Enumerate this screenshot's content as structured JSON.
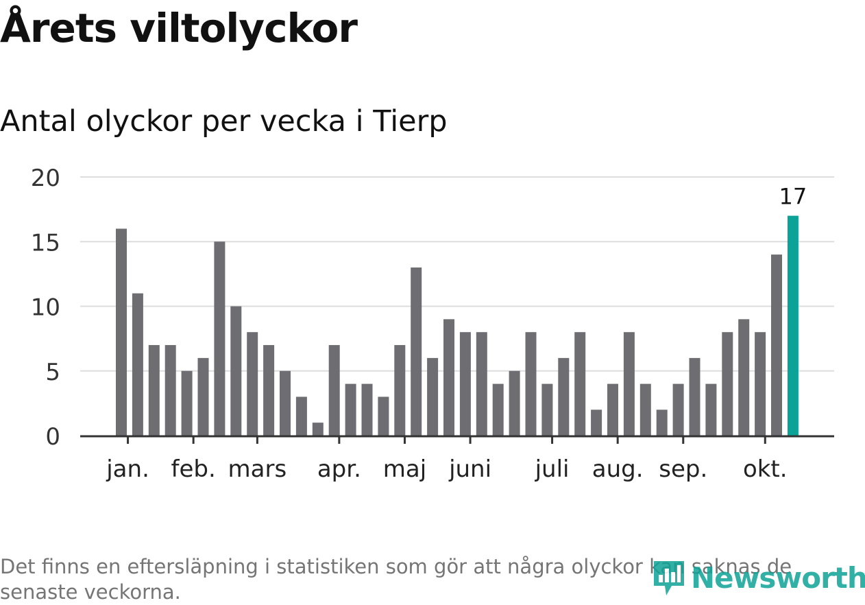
{
  "title": "Årets viltolyckor",
  "subtitle": "Antal olyckor per vecka i Tierp",
  "footnote": "Det finns en eftersläpning i statistiken som gör att några olyckor kan saknas de senaste veckorna.",
  "logo": {
    "text": "Newsworthy",
    "color": "#10a397",
    "icon": "newsworthy-logo-icon"
  },
  "colors": {
    "bar": "#6e6d72",
    "highlight": "#0ba398",
    "grid": "#dddddd",
    "axis": "#333333"
  },
  "chart_data": {
    "type": "bar",
    "title": "Antal olyckor per vecka i Tierp",
    "xlabel": "",
    "ylabel": "",
    "ylim": [
      0,
      20
    ],
    "yticks": [
      0,
      5,
      10,
      15,
      20
    ],
    "grid": true,
    "values": [
      16,
      11,
      7,
      7,
      5,
      6,
      15,
      10,
      8,
      7,
      5,
      3,
      1,
      7,
      4,
      4,
      3,
      7,
      13,
      6,
      9,
      8,
      8,
      4,
      5,
      8,
      4,
      6,
      8,
      2,
      4,
      8,
      4,
      2,
      4,
      6,
      4,
      8,
      9,
      8,
      14,
      17
    ],
    "highlight_index": 41,
    "annotation": {
      "index": 41,
      "text": "17"
    },
    "month_ticks": [
      {
        "label": "jan.",
        "index": 0.4
      },
      {
        "label": "feb.",
        "index": 4.4
      },
      {
        "label": "mars",
        "index": 8.3
      },
      {
        "label": "apr.",
        "index": 13.3
      },
      {
        "label": "maj",
        "index": 17.3
      },
      {
        "label": "juni",
        "index": 21.3
      },
      {
        "label": "juli",
        "index": 26.3
      },
      {
        "label": "aug.",
        "index": 30.3
      },
      {
        "label": "sep.",
        "index": 34.3
      },
      {
        "label": "okt.",
        "index": 39.3
      }
    ]
  }
}
